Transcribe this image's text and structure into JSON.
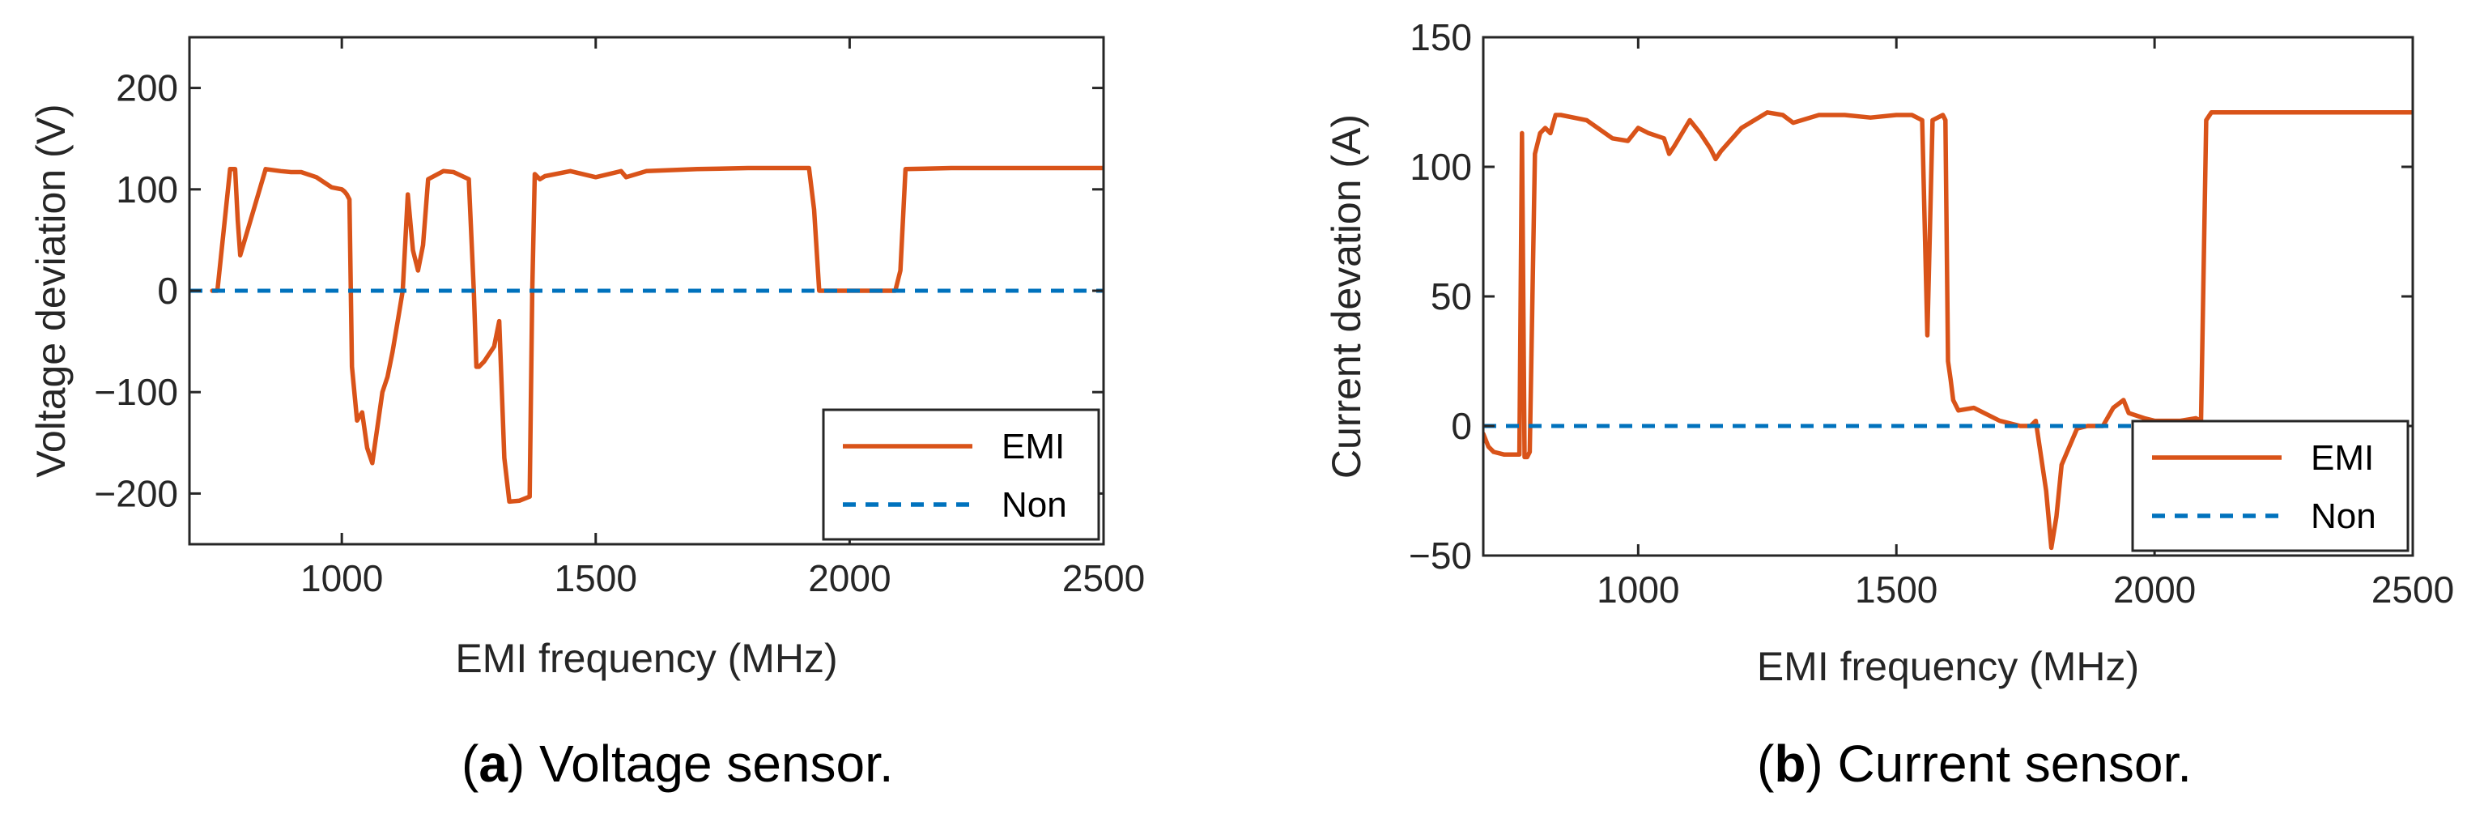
{
  "colors": {
    "emi": "#d95319",
    "non": "#0072bd",
    "axis": "#262626"
  },
  "chart_data": [
    {
      "type": "line",
      "caption": {
        "letter": "a",
        "rest": " Voltage sensor."
      },
      "xlabel": "EMI frequency (MHz)",
      "ylabel": "Voltage deviation (V)",
      "xlim": [
        700,
        2500
      ],
      "ylim": [
        -250,
        250
      ],
      "xticks": [
        1000,
        1500,
        2000,
        2500
      ],
      "yticks": [
        -200,
        -100,
        0,
        100,
        200
      ],
      "legend": {
        "position": "bottom-right",
        "entries": [
          "EMI",
          "Non"
        ]
      },
      "series": [
        {
          "name": "EMI",
          "style": "solid",
          "x": [
            745,
            755,
            780,
            790,
            795,
            800,
            850,
            880,
            900,
            920,
            950,
            980,
            1000,
            1005,
            1010,
            1015,
            1020,
            1030,
            1040,
            1050,
            1060,
            1080,
            1090,
            1100,
            1110,
            1120,
            1130,
            1140,
            1150,
            1160,
            1170,
            1200,
            1220,
            1250,
            1260,
            1265,
            1270,
            1280,
            1300,
            1310,
            1320,
            1330,
            1350,
            1370,
            1375,
            1380,
            1390,
            1400,
            1450,
            1500,
            1550,
            1560,
            1600,
            1700,
            1800,
            1920,
            1930,
            1940,
            2000,
            2050,
            2090,
            2100,
            2110,
            2200,
            2300,
            2400,
            2500
          ],
          "y": [
            0,
            0,
            120,
            120,
            70,
            35,
            120,
            118,
            117,
            117,
            112,
            102,
            100,
            98,
            95,
            90,
            -75,
            -128,
            -120,
            -155,
            -170,
            -100,
            -85,
            -60,
            -30,
            0,
            95,
            40,
            20,
            45,
            110,
            118,
            117,
            110,
            0,
            -75,
            -75,
            -70,
            -55,
            -30,
            -165,
            -208,
            -207,
            -203,
            0,
            115,
            110,
            113,
            118,
            112,
            118,
            112,
            118,
            120,
            121,
            121,
            80,
            0,
            0,
            0,
            0,
            20,
            120,
            121,
            121,
            121,
            121
          ]
        },
        {
          "name": "Non",
          "style": "dashed",
          "x": [
            700,
            2500
          ],
          "y": [
            0,
            0
          ]
        }
      ]
    },
    {
      "type": "line",
      "caption": {
        "letter": "b",
        "rest": " Current sensor."
      },
      "xlabel": "EMI frequency (MHz)",
      "ylabel": "Current devation (A)",
      "xlim": [
        700,
        2500
      ],
      "ylim": [
        -50,
        150
      ],
      "xticks": [
        1000,
        1500,
        2000,
        2500
      ],
      "yticks": [
        -50,
        0,
        50,
        100,
        150
      ],
      "legend": {
        "position": "bottom-right",
        "entries": [
          "EMI",
          "Non"
        ]
      },
      "series": [
        {
          "name": "EMI",
          "style": "solid",
          "x": [
            700,
            710,
            720,
            740,
            760,
            770,
            775,
            780,
            785,
            790,
            800,
            810,
            820,
            830,
            840,
            850,
            900,
            950,
            980,
            1000,
            1020,
            1050,
            1060,
            1070,
            1100,
            1120,
            1140,
            1150,
            1160,
            1200,
            1250,
            1280,
            1300,
            1350,
            1400,
            1450,
            1500,
            1530,
            1550,
            1560,
            1570,
            1590,
            1595,
            1600,
            1605,
            1610,
            1620,
            1650,
            1700,
            1740,
            1760,
            1770,
            1790,
            1800,
            1810,
            1820,
            1850,
            1870,
            1900,
            1920,
            1940,
            1950,
            1980,
            2000,
            2050,
            2080,
            2090,
            2100,
            2110,
            2200,
            2300,
            2400,
            2500
          ],
          "y": [
            -3,
            -8,
            -10,
            -11,
            -11,
            -11,
            113,
            -12,
            -12,
            -10,
            105,
            113,
            115,
            113,
            120,
            120,
            118,
            111,
            110,
            115,
            113,
            111,
            105,
            108,
            118,
            113,
            107,
            103,
            106,
            115,
            121,
            120,
            117,
            120,
            120,
            119,
            120,
            120,
            118,
            35,
            118,
            120,
            118,
            25,
            18,
            10,
            6,
            7,
            2,
            0,
            0,
            2,
            -25,
            -47,
            -35,
            -15,
            -1,
            0,
            0,
            7,
            10,
            5,
            3,
            2,
            2,
            3,
            2,
            118,
            121,
            121,
            121,
            121,
            121
          ]
        },
        {
          "name": "Non",
          "style": "dashed",
          "x": [
            700,
            2500
          ],
          "y": [
            0,
            0
          ]
        }
      ]
    }
  ]
}
